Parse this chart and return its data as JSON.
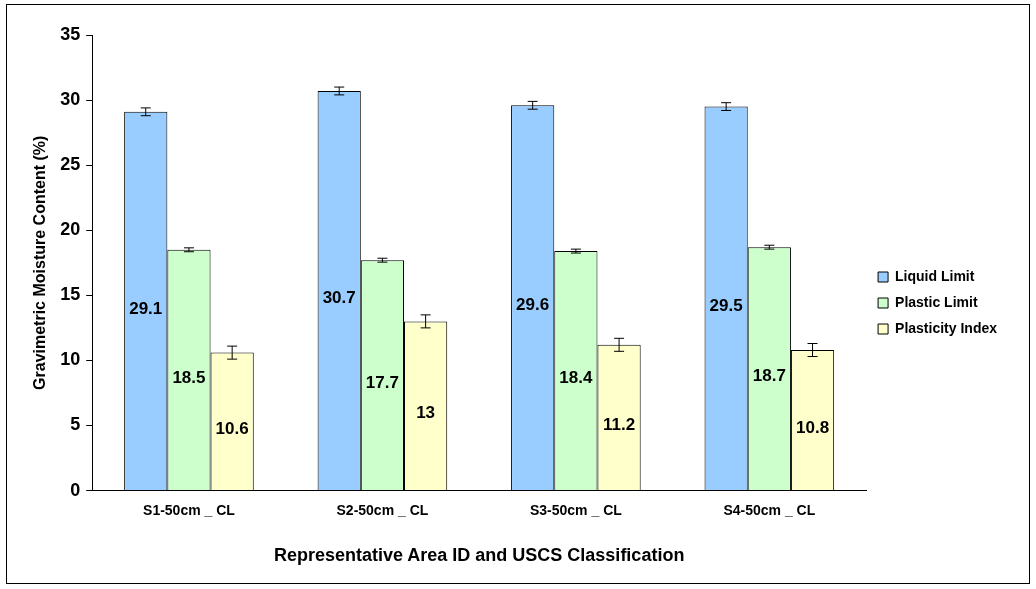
{
  "chart_data": {
    "type": "bar",
    "xlabel": "Representative Area ID and USCS Classification",
    "ylabel": "Gravimetric Moisture Content (%)",
    "categories": [
      "S1-50cm _ CL",
      "S2-50cm _ CL",
      "S3-50cm _ CL",
      "S4-50cm _ CL"
    ],
    "series": [
      {
        "name": "Liquid Limit",
        "color": "#99ccff",
        "values": [
          29.1,
          30.7,
          29.6,
          29.5
        ],
        "errors": [
          0.3,
          0.3,
          0.3,
          0.3
        ]
      },
      {
        "name": "Plastic Limit",
        "color": "#ccffcc",
        "values": [
          18.5,
          17.7,
          18.4,
          18.7
        ],
        "errors": [
          0.15,
          0.15,
          0.15,
          0.15
        ]
      },
      {
        "name": "Plasticity Index",
        "color": "#ffffcc",
        "values": [
          10.6,
          13,
          11.2,
          10.8
        ],
        "errors": [
          0.5,
          0.5,
          0.5,
          0.5
        ]
      }
    ],
    "ylim": [
      0,
      35
    ],
    "yticks": [
      0,
      5,
      10,
      15,
      20,
      25,
      30,
      35
    ],
    "grid": false,
    "legend": "right",
    "data_labels": true
  }
}
